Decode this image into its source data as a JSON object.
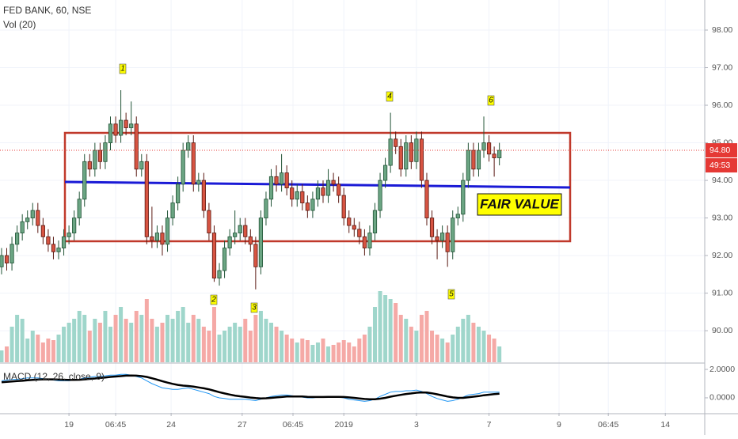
{
  "chart_data": {
    "type": "candlestick",
    "title": "FED BANK, 60, NSE",
    "subtitle": "Vol (20)",
    "macd_label": "MACD (12, 26, close, 9)",
    "fair_value_label": "FAIR VALUE",
    "annotations": [
      "1",
      "2",
      "3",
      "4",
      "5",
      "6"
    ],
    "xlim": [
      -0.3,
      135.6
    ],
    "xticks": [
      {
        "value": 13,
        "label": "19"
      },
      {
        "value": 22,
        "label": "06:45"
      },
      {
        "value": 32.7,
        "label": "24"
      },
      {
        "value": 46.4,
        "label": "27"
      },
      {
        "value": 56.2,
        "label": "06:45"
      },
      {
        "value": 66,
        "label": "2019"
      },
      {
        "value": 80,
        "label": "3"
      },
      {
        "value": 94,
        "label": "7"
      },
      {
        "value": 107.5,
        "label": "9"
      },
      {
        "value": 117,
        "label": "06:45"
      },
      {
        "value": 128,
        "label": "14"
      }
    ],
    "ylim": [
      89.16,
      98.8
    ],
    "yticks": [
      {
        "value": 90,
        "label": "90.00"
      },
      {
        "value": 91,
        "label": "91.00"
      },
      {
        "value": 92,
        "label": "92.00"
      },
      {
        "value": 93,
        "label": "93.00"
      },
      {
        "value": 94,
        "label": "94.00"
      },
      {
        "value": 95,
        "label": "95.00"
      },
      {
        "value": 96,
        "label": "96.00"
      },
      {
        "value": 97,
        "label": "97.00"
      },
      {
        "value": 98,
        "label": "98.00"
      }
    ],
    "last_price": {
      "value": 94.8,
      "label": "94.80"
    },
    "countdown": "49:53",
    "up_color": "#6ba583",
    "down_color": "#d75442",
    "volume_up_color": "#9fd6cb",
    "volume_down_color": "#f5a9a6",
    "open": [
      91.7,
      92.0,
      91.8,
      92.3,
      92.6,
      92.9,
      93.0,
      93.2,
      92.8,
      92.5,
      92.3,
      92.1,
      92.2,
      92.5,
      92.6,
      93.0,
      93.5,
      94.5,
      94.3,
      94.8,
      94.5,
      95.0,
      95.5,
      95.2,
      95.6,
      95.4,
      95.5,
      94.3,
      94.5,
      92.5,
      92.4,
      92.6,
      92.3,
      93.0,
      93.4,
      93.9,
      94.8,
      95.0,
      93.9,
      94.0,
      93.2,
      92.6,
      91.4,
      91.6,
      92.2,
      92.5,
      92.6,
      92.8,
      92.5,
      92.3,
      91.7,
      93.0,
      93.5,
      94.1,
      93.9,
      94.2,
      93.8,
      93.5,
      93.7,
      93.4,
      93.2,
      93.5,
      93.8,
      93.6,
      94.0,
      93.9,
      93.6,
      93.0,
      92.8,
      92.7,
      92.5,
      92.2,
      92.6,
      93.2,
      94.0,
      94.4,
      95.1,
      94.9,
      94.3,
      95.0,
      94.5,
      95.1,
      94.0,
      93.0,
      92.5,
      92.4,
      92.6,
      92.1,
      93.0,
      93.1,
      94.0,
      94.8,
      94.3,
      94.8,
      95.0,
      94.7,
      94.6
    ],
    "high": [
      92.2,
      92.2,
      92.5,
      92.8,
      93.1,
      93.2,
      93.4,
      93.4,
      93.0,
      92.7,
      92.5,
      92.4,
      92.7,
      92.8,
      93.2,
      93.7,
      94.7,
      94.7,
      95.0,
      95.0,
      95.2,
      95.7,
      95.7,
      96.4,
      95.8,
      96.1,
      95.7,
      94.7,
      94.7,
      93.3,
      92.8,
      92.8,
      93.2,
      93.6,
      94.1,
      95.0,
      95.2,
      95.2,
      94.2,
      94.2,
      93.4,
      92.8,
      91.8,
      92.4,
      92.7,
      93.2,
      93.0,
      93.0,
      92.7,
      92.5,
      93.2,
      93.7,
      94.3,
      94.4,
      94.7,
      94.4,
      94.0,
      93.9,
      93.9,
      93.6,
      93.7,
      94.0,
      94.0,
      94.3,
      94.2,
      94.1,
      93.8,
      93.2,
      93.0,
      92.9,
      92.7,
      92.8,
      93.4,
      94.2,
      94.6,
      95.8,
      95.3,
      95.1,
      95.2,
      95.2,
      95.3,
      95.3,
      94.2,
      93.2,
      92.7,
      92.8,
      92.8,
      93.2,
      93.3,
      94.2,
      95.0,
      95.0,
      95.0,
      95.7,
      95.2,
      94.9,
      95.0
    ],
    "low": [
      91.5,
      91.6,
      91.6,
      92.1,
      92.4,
      92.7,
      92.8,
      92.6,
      92.3,
      92.1,
      91.9,
      91.9,
      92.0,
      92.3,
      92.4,
      92.8,
      93.3,
      94.1,
      94.1,
      94.3,
      94.3,
      94.8,
      95.0,
      95.0,
      95.2,
      95.2,
      94.1,
      94.1,
      92.3,
      92.2,
      92.2,
      92.0,
      92.1,
      92.8,
      93.2,
      93.7,
      94.6,
      93.7,
      93.7,
      93.0,
      92.4,
      91.3,
      91.2,
      91.4,
      92.0,
      92.3,
      92.4,
      92.3,
      92.1,
      91.1,
      91.5,
      92.8,
      93.3,
      93.7,
      93.7,
      93.6,
      93.3,
      93.3,
      93.2,
      93.0,
      93.0,
      93.3,
      93.4,
      93.4,
      93.7,
      93.4,
      92.8,
      92.6,
      92.5,
      92.3,
      92.0,
      92.0,
      92.4,
      93.0,
      93.8,
      94.2,
      94.7,
      94.1,
      94.1,
      94.3,
      94.3,
      93.8,
      92.8,
      92.3,
      91.9,
      92.2,
      91.7,
      91.9,
      92.8,
      92.9,
      93.8,
      94.1,
      94.1,
      94.6,
      94.5,
      94.1,
      94.4
    ],
    "close": [
      92.0,
      91.8,
      92.3,
      92.6,
      92.9,
      93.0,
      93.2,
      92.8,
      92.5,
      92.3,
      92.1,
      92.2,
      92.5,
      92.6,
      93.0,
      93.5,
      94.5,
      94.3,
      94.8,
      94.5,
      95.0,
      95.5,
      95.2,
      95.6,
      95.4,
      95.5,
      94.3,
      94.5,
      92.5,
      92.4,
      92.6,
      92.3,
      93.0,
      93.4,
      93.9,
      94.8,
      95.0,
      93.9,
      94.0,
      93.2,
      92.6,
      91.4,
      91.6,
      92.2,
      92.5,
      92.6,
      92.8,
      92.5,
      92.3,
      91.7,
      93.0,
      93.5,
      94.1,
      93.9,
      94.2,
      93.8,
      93.5,
      93.7,
      93.4,
      93.2,
      93.5,
      93.8,
      93.6,
      94.0,
      93.9,
      93.6,
      93.0,
      92.8,
      92.7,
      92.5,
      92.2,
      92.6,
      93.2,
      94.0,
      94.4,
      95.1,
      94.9,
      94.3,
      95.0,
      94.5,
      95.1,
      94.0,
      93.0,
      92.5,
      92.4,
      92.6,
      92.1,
      93.0,
      93.1,
      94.0,
      94.8,
      94.3,
      94.8,
      95.0,
      94.7,
      94.6,
      94.8
    ],
    "volume_ylim": [
      0,
      458
    ],
    "volume": [
      15,
      20,
      45,
      60,
      55,
      30,
      40,
      35,
      25,
      30,
      28,
      35,
      45,
      50,
      55,
      65,
      60,
      40,
      55,
      50,
      65,
      45,
      60,
      70,
      55,
      50,
      65,
      60,
      80,
      55,
      45,
      50,
      60,
      55,
      65,
      70,
      50,
      60,
      55,
      45,
      40,
      70,
      35,
      40,
      45,
      50,
      45,
      55,
      40,
      60,
      65,
      55,
      50,
      45,
      40,
      35,
      30,
      25,
      30,
      28,
      22,
      25,
      30,
      20,
      22,
      25,
      28,
      25,
      20,
      30,
      35,
      45,
      70,
      90,
      85,
      80,
      75,
      60,
      55,
      45,
      40,
      60,
      65,
      40,
      35,
      30,
      25,
      35,
      45,
      55,
      60,
      50,
      45,
      40,
      35,
      30,
      20
    ],
    "macd_ylim": [
      -1.06,
      2.39
    ],
    "macd_ticks": [
      {
        "value": 2,
        "label": "2.0000"
      },
      {
        "value": 0,
        "label": "0.0000"
      }
    ],
    "macd_series": [
      {
        "color": "#2196f3",
        "width": 1,
        "values": [
          1.2,
          1.25,
          1.3,
          1.3,
          1.35,
          1.4,
          1.4,
          1.4,
          1.35,
          1.3,
          1.25,
          1.2,
          1.2,
          1.2,
          1.25,
          1.3,
          1.4,
          1.45,
          1.5,
          1.5,
          1.55,
          1.6,
          1.6,
          1.65,
          1.65,
          1.6,
          1.5,
          1.4,
          1.2,
          1.0,
          0.85,
          0.7,
          0.65,
          0.6,
          0.6,
          0.65,
          0.7,
          0.6,
          0.5,
          0.4,
          0.3,
          0.1,
          0.0,
          -0.05,
          -0.1,
          -0.1,
          -0.1,
          -0.1,
          -0.15,
          -0.2,
          -0.1,
          0.0,
          0.1,
          0.15,
          0.2,
          0.2,
          0.15,
          0.1,
          0.05,
          0.0,
          0.0,
          0.05,
          0.05,
          0.1,
          0.1,
          0.05,
          0.0,
          -0.1,
          -0.15,
          -0.2,
          -0.25,
          -0.2,
          -0.1,
          0.1,
          0.25,
          0.4,
          0.45,
          0.45,
          0.5,
          0.5,
          0.55,
          0.45,
          0.3,
          0.1,
          -0.05,
          -0.15,
          -0.25,
          -0.2,
          -0.1,
          0.05,
          0.2,
          0.25,
          0.3,
          0.4,
          0.4,
          0.4,
          0.4
        ]
      },
      {
        "color": "#000000",
        "width": 2.5,
        "values": [
          1.1,
          1.12,
          1.15,
          1.18,
          1.2,
          1.23,
          1.26,
          1.28,
          1.3,
          1.3,
          1.3,
          1.28,
          1.27,
          1.26,
          1.26,
          1.27,
          1.3,
          1.33,
          1.36,
          1.4,
          1.43,
          1.47,
          1.5,
          1.53,
          1.56,
          1.57,
          1.56,
          1.53,
          1.47,
          1.38,
          1.28,
          1.17,
          1.07,
          0.98,
          0.91,
          0.86,
          0.83,
          0.79,
          0.73,
          0.67,
          0.6,
          0.5,
          0.4,
          0.31,
          0.23,
          0.16,
          0.11,
          0.07,
          0.02,
          -0.02,
          -0.04,
          -0.03,
          0.0,
          0.03,
          0.06,
          0.09,
          0.1,
          0.1,
          0.09,
          0.07,
          0.06,
          0.06,
          0.06,
          0.07,
          0.07,
          0.07,
          0.06,
          0.03,
          0.0,
          -0.04,
          -0.08,
          -0.1,
          -0.1,
          -0.06,
          0.0,
          0.08,
          0.15,
          0.21,
          0.27,
          0.31,
          0.36,
          0.38,
          0.37,
          0.32,
          0.25,
          0.17,
          0.09,
          0.03,
          0.0,
          0.0,
          0.04,
          0.08,
          0.12,
          0.18,
          0.22,
          0.26,
          0.29
        ]
      }
    ],
    "grid": true
  }
}
